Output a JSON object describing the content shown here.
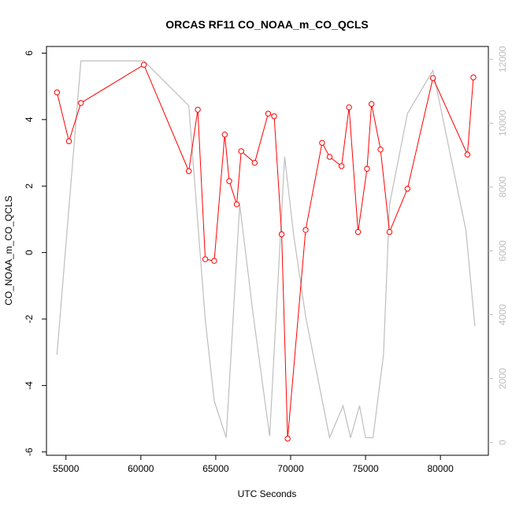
{
  "chart_data": {
    "type": "line",
    "title": "ORCAS RF11 CO_NOAA_m_CO_QCLS",
    "xlabel": "UTC Seconds",
    "ylabel": "CO_NOAA_m_CO_QCLS",
    "xlim": [
      53700,
      83200
    ],
    "ylim": [
      -6.1,
      6.2
    ],
    "y2lim": [
      -400,
      12400
    ],
    "x_ticks": [
      55000,
      60000,
      65000,
      70000,
      75000,
      80000
    ],
    "y_ticks": [
      -6,
      -4,
      -2,
      0,
      2,
      4,
      6
    ],
    "y2_ticks": [
      0,
      2000,
      4000,
      6000,
      8000,
      10000,
      12000
    ],
    "colors": {
      "primary": "#ff0000",
      "secondary": "#bebebe",
      "axis": "#000000"
    },
    "series": [
      {
        "axis": "left",
        "style": "line+open-circle",
        "x": [
          54400,
          55200,
          56000,
          60200,
          63200,
          63800,
          64300,
          64900,
          65600,
          65900,
          66400,
          66700,
          67600,
          68500,
          68900,
          69400,
          69800,
          71000,
          72100,
          72600,
          73400,
          73900,
          74500,
          75100,
          75400,
          76000,
          76600,
          77800,
          79500,
          81800,
          82200
        ],
        "y": [
          4.82,
          3.35,
          4.5,
          5.65,
          2.45,
          4.3,
          -0.2,
          -0.25,
          3.55,
          2.15,
          1.45,
          3.05,
          2.7,
          4.18,
          4.1,
          0.55,
          -5.6,
          0.68,
          3.3,
          2.88,
          2.6,
          4.37,
          0.62,
          2.52,
          4.47,
          3.1,
          0.62,
          1.92,
          5.25,
          2.95,
          5.27
        ]
      },
      {
        "axis": "right",
        "style": "line",
        "x": [
          54400,
          56000,
          60200,
          63200,
          64300,
          64900,
          65700,
          66600,
          67500,
          68600,
          69600,
          70200,
          71000,
          72600,
          73500,
          74000,
          74600,
          75000,
          75500,
          76200,
          76600,
          77800,
          79500,
          81700,
          82300
        ],
        "y": [
          2750,
          11950,
          11950,
          10550,
          3850,
          1300,
          150,
          7450,
          4000,
          200,
          8950,
          6500,
          3950,
          150,
          1150,
          150,
          1150,
          150,
          150,
          2750,
          7450,
          10300,
          11650,
          6650,
          3650
        ]
      }
    ]
  }
}
